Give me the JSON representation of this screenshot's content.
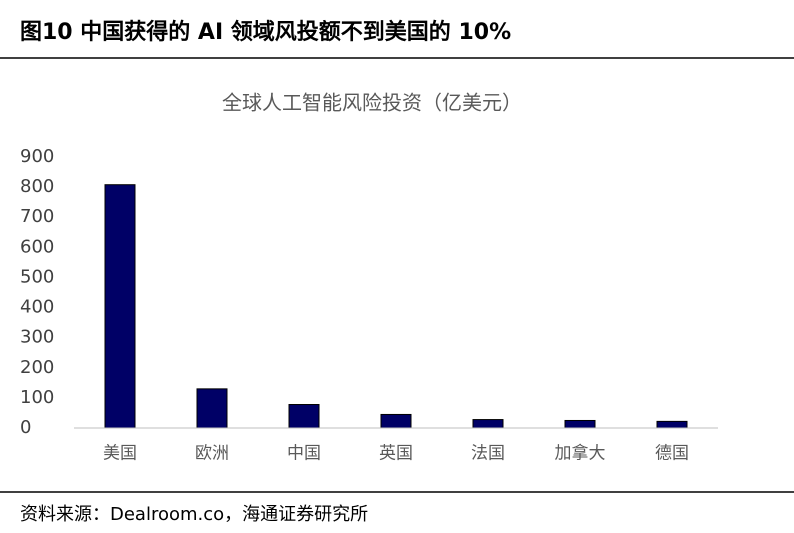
{
  "header": {
    "title": "图10 中国获得的 AI 领域风投额不到美国的 10%"
  },
  "source": "资料来源：Dealroom.co，海通证券研究所",
  "chart_data": {
    "type": "bar",
    "title": "全球人工智能风险投资（亿美元）",
    "categories": [
      "美国",
      "欧洲",
      "中国",
      "英国",
      "法国",
      "加拿大",
      "德国"
    ],
    "values": [
      808,
      130,
      78,
      45,
      28,
      25,
      22
    ],
    "color": "#000066",
    "ylim": [
      0,
      900
    ],
    "yticks": [
      0,
      100,
      200,
      300,
      400,
      500,
      600,
      700,
      800,
      900
    ],
    "grid": false
  }
}
